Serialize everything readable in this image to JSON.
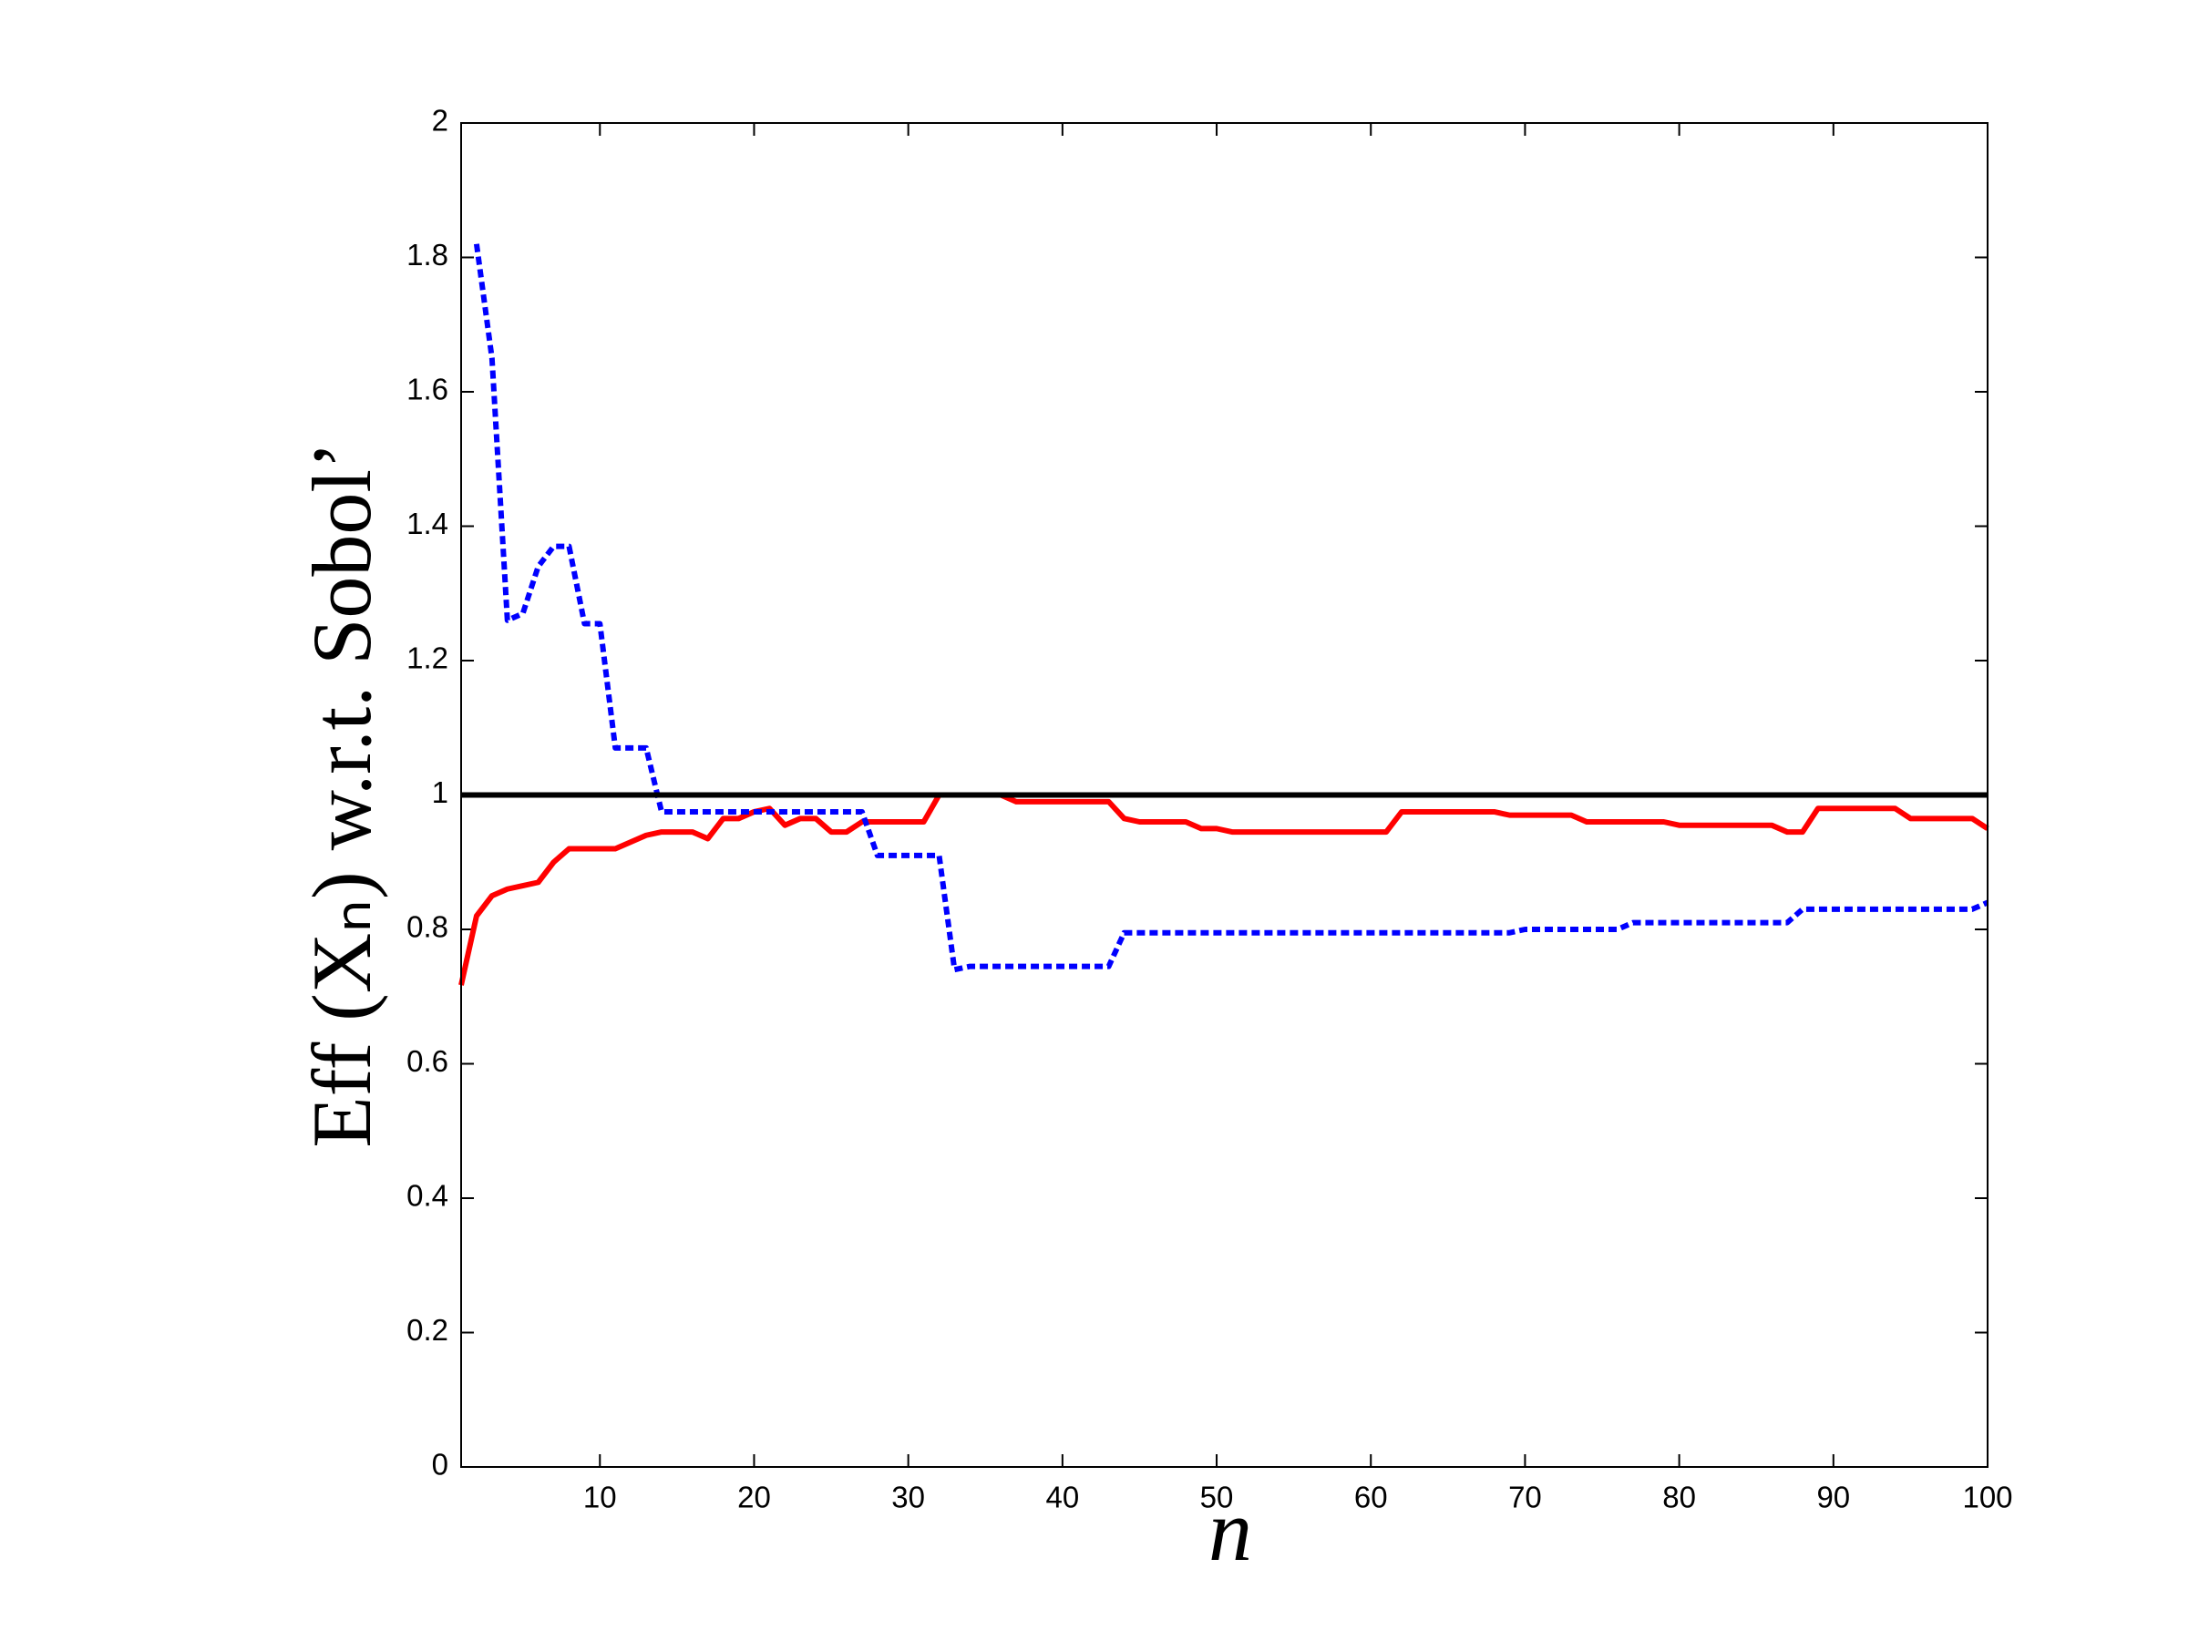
{
  "chart_data": {
    "type": "line",
    "xlabel": "n",
    "ylabel": "Eff (Xₙ) w.r.t. Sobol’",
    "x": [
      1,
      2,
      3,
      4,
      5,
      6,
      7,
      8,
      9,
      10,
      11,
      12,
      13,
      14,
      15,
      16,
      17,
      18,
      19,
      20,
      21,
      22,
      23,
      24,
      25,
      26,
      27,
      28,
      29,
      30,
      31,
      32,
      33,
      34,
      35,
      36,
      37,
      38,
      39,
      40,
      41,
      42,
      43,
      44,
      45,
      46,
      47,
      48,
      49,
      50,
      51,
      52,
      53,
      54,
      55,
      56,
      57,
      58,
      59,
      60,
      61,
      62,
      63,
      64,
      65,
      66,
      67,
      68,
      69,
      70,
      71,
      72,
      73,
      74,
      75,
      76,
      77,
      78,
      79,
      80,
      81,
      82,
      83,
      84,
      85,
      86,
      87,
      88,
      89,
      90,
      91,
      92,
      93,
      94,
      95,
      96,
      97,
      98,
      99,
      100
    ],
    "series": [
      {
        "color": "#ff0000",
        "dash": false,
        "values": [
          0.717,
          0.82,
          0.85,
          0.86,
          0.865,
          0.87,
          0.9,
          0.92,
          0.92,
          0.92,
          0.92,
          0.93,
          0.94,
          0.945,
          0.945,
          0.945,
          0.935,
          0.965,
          0.965,
          0.975,
          0.98,
          0.955,
          0.965,
          0.965,
          0.945,
          0.945,
          0.96,
          0.96,
          0.96,
          0.96,
          0.96,
          1,
          1,
          1,
          1,
          1,
          0.99,
          0.99,
          0.99,
          0.99,
          0.99,
          0.99,
          0.99,
          0.965,
          0.96,
          0.96,
          0.96,
          0.96,
          0.95,
          0.95,
          0.945,
          0.945,
          0.945,
          0.945,
          0.945,
          0.945,
          0.945,
          0.945,
          0.945,
          0.945,
          0.945,
          0.975,
          0.975,
          0.975,
          0.975,
          0.975,
          0.975,
          0.975,
          0.97,
          0.97,
          0.97,
          0.97,
          0.97,
          0.96,
          0.96,
          0.96,
          0.96,
          0.96,
          0.96,
          0.955,
          0.955,
          0.955,
          0.955,
          0.955,
          0.955,
          0.955,
          0.945,
          0.945,
          0.98,
          0.98,
          0.98,
          0.98,
          0.98,
          0.98,
          0.965,
          0.965,
          0.965,
          0.965,
          0.965,
          0.95
        ]
      },
      {
        "color": "#0000ff",
        "dash": true,
        "values": [
          null,
          1.82,
          1.65,
          1.26,
          1.27,
          1.34,
          1.37,
          1.37,
          1.255,
          1.255,
          1.07,
          1.07,
          1.07,
          0.975,
          0.975,
          0.975,
          0.975,
          0.975,
          0.975,
          0.975,
          0.975,
          0.975,
          0.975,
          0.975,
          0.975,
          0.975,
          0.975,
          0.91,
          0.91,
          0.91,
          0.91,
          0.91,
          0.74,
          0.745,
          0.745,
          0.745,
          0.745,
          0.745,
          0.745,
          0.745,
          0.745,
          0.745,
          0.745,
          0.795,
          0.795,
          0.795,
          0.795,
          0.795,
          0.795,
          0.795,
          0.795,
          0.795,
          0.795,
          0.795,
          0.795,
          0.795,
          0.795,
          0.795,
          0.795,
          0.795,
          0.795,
          0.795,
          0.795,
          0.795,
          0.795,
          0.795,
          0.795,
          0.795,
          0.795,
          0.8,
          0.8,
          0.8,
          0.8,
          0.8,
          0.8,
          0.8,
          0.81,
          0.81,
          0.81,
          0.81,
          0.81,
          0.81,
          0.81,
          0.81,
          0.81,
          0.81,
          0.81,
          0.83,
          0.83,
          0.83,
          0.83,
          0.83,
          0.83,
          0.83,
          0.83,
          0.83,
          0.83,
          0.83,
          0.83,
          0.84
        ]
      }
    ],
    "reference_line": 1,
    "reference_color": "#000000",
    "xlim": [
      1,
      100
    ],
    "xticks": [
      10,
      20,
      30,
      40,
      50,
      60,
      70,
      80,
      90,
      100
    ],
    "ylim": [
      0,
      2
    ],
    "yticks": [
      0,
      0.2,
      0.4,
      0.6,
      0.8,
      1,
      1.2,
      1.4,
      1.6,
      1.8,
      2
    ],
    "grid": false
  }
}
